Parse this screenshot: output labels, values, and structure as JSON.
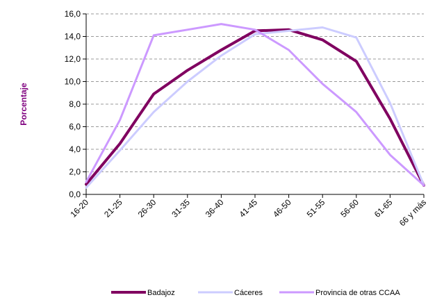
{
  "chart_data": {
    "type": "line",
    "title": "",
    "xlabel": "",
    "ylabel": "Porcentaje",
    "ylabel_color": "#7f007f",
    "categories": [
      "16-20",
      "21-25",
      "26-30",
      "31-35",
      "36-40",
      "41-45",
      "46-50",
      "51-55",
      "56-60",
      "61-65",
      "66 y más"
    ],
    "ylim": [
      0,
      16
    ],
    "ytick_step": 2,
    "ytick_labels": [
      "0,0",
      "2,0",
      "4,0",
      "6,0",
      "8,0",
      "10,0",
      "12,0",
      "14,0",
      "16,0"
    ],
    "grid": "horizontal-dashed",
    "legend_position": "bottom",
    "series": [
      {
        "name": "Badajoz",
        "color": "#800060",
        "width": 4,
        "values": [
          0.9,
          4.5,
          8.9,
          11.0,
          12.8,
          14.5,
          14.6,
          13.7,
          11.8,
          6.7,
          0.8
        ]
      },
      {
        "name": "Cáceres",
        "color": "#ccccff",
        "width": 3,
        "values": [
          0.6,
          3.9,
          7.3,
          10.0,
          12.3,
          14.2,
          14.5,
          14.8,
          13.9,
          8.1,
          0.8
        ]
      },
      {
        "name": "Provincia de otras CCAA",
        "color": "#cc99ff",
        "width": 3,
        "values": [
          1.1,
          6.6,
          14.1,
          14.6,
          15.1,
          14.6,
          12.8,
          9.8,
          7.3,
          3.5,
          0.8
        ]
      }
    ]
  }
}
